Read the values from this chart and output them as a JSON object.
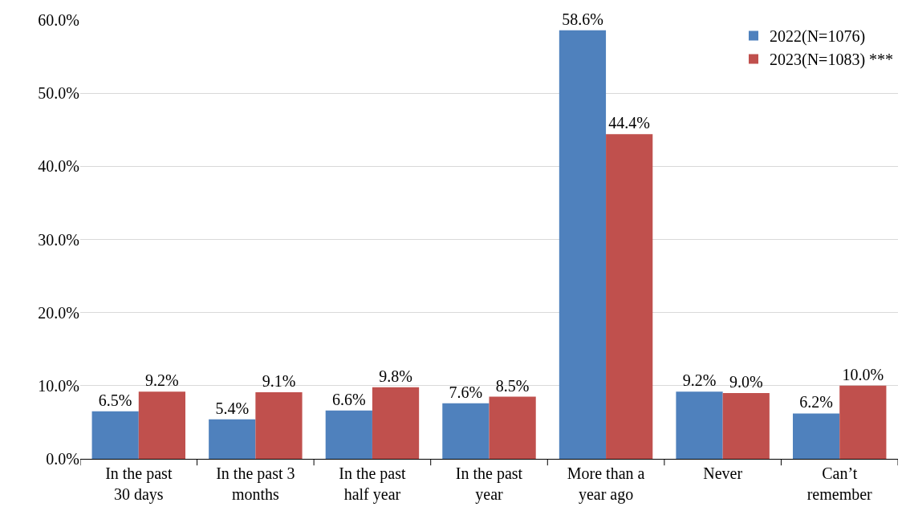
{
  "chart_data": {
    "type": "bar",
    "categories": [
      "In the past 30 days",
      "In the past 3 months",
      "In the past half year",
      "In the past year",
      "More than a year ago",
      "Never",
      "Can’t remember"
    ],
    "series": [
      {
        "name": "2022(N=1076)",
        "color": "#4f81bd",
        "values": [
          6.5,
          5.4,
          6.6,
          7.6,
          58.6,
          9.2,
          6.2
        ],
        "value_labels": [
          "6.5%",
          "5.4%",
          "6.6%",
          "7.6%",
          "58.6%",
          "9.2%",
          "6.2%"
        ]
      },
      {
        "name": "2023(N=1083) ***",
        "color": "#c0504d",
        "values": [
          9.2,
          9.1,
          9.8,
          8.5,
          44.4,
          9.0,
          10.0
        ],
        "value_labels": [
          "9.2%",
          "9.1%",
          "9.8%",
          "8.5%",
          "44.4%",
          "9.0%",
          "10.0%"
        ]
      }
    ],
    "ylim": [
      0,
      60
    ],
    "yticks": [
      {
        "value": 0,
        "label": "0.0%"
      },
      {
        "value": 10,
        "label": "10.0%"
      },
      {
        "value": 20,
        "label": "20.0%"
      },
      {
        "value": 30,
        "label": "30.0%"
      },
      {
        "value": 40,
        "label": "40.0%"
      },
      {
        "value": 50,
        "label": "50.0%"
      },
      {
        "value": 60,
        "label": "60.0%"
      }
    ],
    "grid": "y",
    "legend": "top right"
  }
}
